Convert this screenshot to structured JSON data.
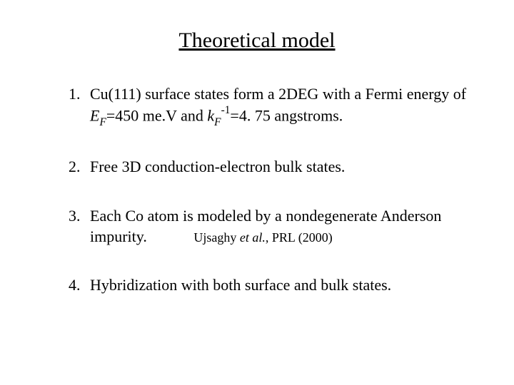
{
  "title": "Theoretical model",
  "items": [
    {
      "num": "1.",
      "pre": "Cu(111) surface states form a 2DEG with a Fermi energy of ",
      "ef_sym": "E",
      "ef_sub": "F",
      "ef_eq": "=450 me.V and ",
      "kf_sym": "k",
      "kf_sub": "F",
      "kf_sup": "-1",
      "kf_eq": "=4. 75 angstroms."
    },
    {
      "num": "2.",
      "text": "Free 3D conduction-electron bulk states."
    },
    {
      "num": "3.",
      "text": "Each Co atom is modeled by a nondegenerate Anderson impurity.",
      "cite_pre": "Ujsaghy ",
      "cite_it": "et al.",
      "cite_post": ", PRL (2000)"
    },
    {
      "num": "4.",
      "text": "Hybridization with both surface and bulk states."
    }
  ],
  "colors": {
    "background": "#ffffff",
    "text": "#000000"
  },
  "typography": {
    "title_fontsize": 30,
    "body_fontsize": 22,
    "citation_fontsize": 18,
    "font_family": "Times New Roman"
  }
}
